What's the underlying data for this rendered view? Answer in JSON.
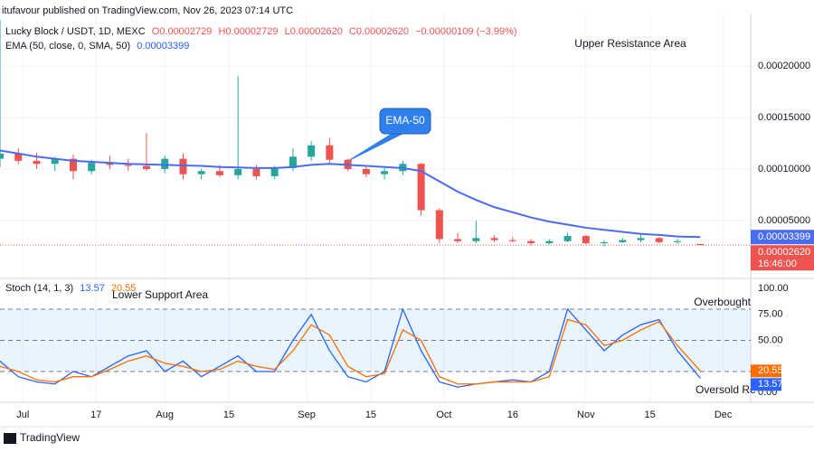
{
  "header": {
    "publisher": "itufavour published on TradingView.com, Nov 26, 2023 07:14 UTC",
    "brand": "TradingView"
  },
  "chart_data": [
    {
      "type": "candlestick",
      "title": "Lucky Block / USDT, 1D, MEXC",
      "ohlc_labels": [
        "O0.00002729",
        "H0.00002729",
        "L0.00002620",
        "C0.00002620",
        "−0.00000109 (−3.99%)"
      ],
      "up_color": "#26a69a",
      "down_color": "#ef5350",
      "x": [
        "2023-06-26",
        "2023-06-30",
        "2023-07-04",
        "2023-07-08",
        "2023-07-12",
        "2023-07-16",
        "2023-07-20",
        "2023-07-24",
        "2023-07-28",
        "2023-08-01",
        "2023-08-05",
        "2023-08-09",
        "2023-08-13",
        "2023-08-17",
        "2023-08-21",
        "2023-08-25",
        "2023-08-29",
        "2023-09-02",
        "2023-09-06",
        "2023-09-10",
        "2023-09-14",
        "2023-09-18",
        "2023-09-22",
        "2023-09-26",
        "2023-09-30",
        "2023-10-04",
        "2023-10-08",
        "2023-10-12",
        "2023-10-16",
        "2023-10-20",
        "2023-10-24",
        "2023-10-28",
        "2023-11-01",
        "2023-11-05",
        "2023-11-09",
        "2023-11-13",
        "2023-11-17",
        "2023-11-21",
        "2023-11-26"
      ],
      "open": [
        0.00011,
        0.000115,
        0.000108,
        0.000105,
        0.00011,
        9.8e-05,
        0.000106,
        0.000104,
        0.000103,
        0.0001,
        0.00011,
        9.5e-05,
        9.8e-05,
        9.4e-05,
        0.0001,
        9.3e-05,
        0.000101,
        0.000112,
        0.000123,
        0.000109,
        0.0001,
        9.5e-05,
        9.8e-05,
        0.000105,
        6e-05,
        3.2e-05,
        3e-05,
        3.3e-05,
        3.1e-05,
        3e-05,
        2.8e-05,
        3e-05,
        3.5e-05,
        2.8e-05,
        2.9e-05,
        3.1e-05,
        3.3e-05,
        2.9e-05,
        2.729e-05
      ],
      "high": [
        0.000245,
        0.00012,
        0.000116,
        0.000112,
        0.000114,
        0.000109,
        0.000113,
        0.00011,
        0.000135,
        0.000113,
        0.000115,
        0.0001,
        0.000104,
        0.00019,
        0.000104,
        0.000103,
        0.00012,
        0.000127,
        0.00013,
        0.00011,
        0.000103,
        0.000101,
        0.000108,
        0.000106,
        6.2e-05,
        3.8e-05,
        5e-05,
        3.6e-05,
        3.4e-05,
        3.2e-05,
        3.2e-05,
        3.8e-05,
        3.6e-05,
        3.1e-05,
        3.3e-05,
        3.8e-05,
        3.4e-05,
        3.2e-05,
        2.729e-05
      ],
      "low": [
        0.000102,
        0.000105,
        0.0001,
        9.8e-05,
        9e-05,
        9.5e-05,
        0.0001,
        9.8e-05,
        9.8e-05,
        9.6e-05,
        9e-05,
        9e-05,
        9.2e-05,
        9e-05,
        9e-05,
        9e-05,
        9.8e-05,
        0.000108,
        0.000105,
        9.8e-05,
        9.2e-05,
        9e-05,
        9.4e-05,
        5.5e-05,
        2.8e-05,
        2.8e-05,
        2.8e-05,
        2.9e-05,
        2.9e-05,
        2.6e-05,
        2.7e-05,
        2.9e-05,
        2.7e-05,
        2.5e-05,
        2.8e-05,
        2.9e-05,
        2.8e-05,
        2.7e-05,
        2.62e-05
      ],
      "close": [
        0.000115,
        0.000108,
        0.000105,
        0.00011,
        9.8e-05,
        0.000106,
        0.000104,
        0.000103,
        0.0001,
        0.00011,
        9.5e-05,
        9.8e-05,
        9.4e-05,
        0.0001,
        9.3e-05,
        0.000101,
        0.000112,
        0.000123,
        0.000109,
        0.0001,
        9.5e-05,
        9.8e-05,
        0.000105,
        6e-05,
        3.2e-05,
        3e-05,
        3.3e-05,
        3.1e-05,
        3e-05,
        2.8e-05,
        3e-05,
        3.5e-05,
        2.8e-05,
        2.9e-05,
        3.1e-05,
        3.3e-05,
        2.9e-05,
        3e-05,
        2.62e-05
      ],
      "last_labels": {
        "close": "0.00002620",
        "countdown": "16:46:00"
      },
      "series": [
        {
          "name": "EMA (50, close, 0, SMA, 50)",
          "color": "#4a6cf0",
          "values": [
            0.000118,
            0.000115,
            0.000112,
            0.00011,
            0.000108,
            0.000107,
            0.000106,
            0.000105,
            0.0001045,
            0.000104,
            0.0001035,
            0.000103,
            0.000102,
            0.0001015,
            0.000101,
            0.000101,
            0.000102,
            0.000104,
            0.000105,
            0.000104,
            0.000103,
            0.000102,
            0.000101,
            9.8e-05,
            8.8e-05,
            7.8e-05,
            7e-05,
            6.3e-05,
            5.8e-05,
            5.3e-05,
            4.9e-05,
            4.6e-05,
            4.3e-05,
            4.1e-05,
            3.9e-05,
            3.7e-05,
            3.6e-05,
            3.45e-05,
            3.399e-05
          ]
        }
      ],
      "ylim": [
        -1.8e-06,
        0.0002509
      ],
      "yticks": [
        {
          "value": 0.0002,
          "label": "0.00020000"
        },
        {
          "value": 0.00015,
          "label": "0.00015000"
        },
        {
          "value": 0.0001,
          "label": "0.00010000"
        },
        {
          "value": 5e-05,
          "label": "0.00005000"
        }
      ],
      "xlim": [
        "2023-06-26",
        "2023-12-07"
      ],
      "grid": true,
      "annotations": [
        "Upper Resistance Area",
        "EMA-50"
      ]
    },
    {
      "type": "line",
      "title": "Stoch (14, 1, 3)",
      "x": [
        "2023-06-26",
        "2023-06-30",
        "2023-07-04",
        "2023-07-08",
        "2023-07-12",
        "2023-07-16",
        "2023-07-20",
        "2023-07-24",
        "2023-07-28",
        "2023-08-01",
        "2023-08-05",
        "2023-08-09",
        "2023-08-13",
        "2023-08-17",
        "2023-08-21",
        "2023-08-25",
        "2023-08-29",
        "2023-09-02",
        "2023-09-06",
        "2023-09-10",
        "2023-09-14",
        "2023-09-18",
        "2023-09-22",
        "2023-09-26",
        "2023-09-30",
        "2023-10-04",
        "2023-10-08",
        "2023-10-12",
        "2023-10-16",
        "2023-10-20",
        "2023-10-24",
        "2023-10-28",
        "2023-11-01",
        "2023-11-05",
        "2023-11-09",
        "2023-11-13",
        "2023-11-17",
        "2023-11-21",
        "2023-11-26"
      ],
      "series": [
        {
          "color": "#2962ff",
          "values": [
            30,
            15,
            10,
            8,
            20,
            15,
            25,
            35,
            40,
            20,
            30,
            15,
            25,
            35,
            20,
            20,
            50,
            75,
            40,
            15,
            10,
            20,
            80,
            40,
            10,
            5,
            8,
            10,
            12,
            10,
            20,
            80,
            60,
            40,
            55,
            65,
            70,
            40,
            13.57
          ]
        },
        {
          "color": "#ff6d00",
          "values": [
            25,
            20,
            12,
            10,
            15,
            15,
            22,
            30,
            35,
            28,
            25,
            20,
            22,
            30,
            25,
            22,
            40,
            65,
            55,
            25,
            15,
            18,
            60,
            50,
            15,
            8,
            8,
            10,
            10,
            10,
            15,
            70,
            65,
            45,
            50,
            60,
            68,
            45,
            20.55
          ]
        }
      ],
      "ylim": [
        -9.6,
        107.8
      ],
      "yticks": [
        {
          "value": 100,
          "label": "100.00"
        },
        {
          "value": 75,
          "label": "75.00"
        },
        {
          "value": 50,
          "label": "50.00"
        },
        {
          "value": 0,
          "label": "0.00"
        }
      ],
      "band": [
        20,
        80
      ],
      "hlines": [
        80,
        50,
        20
      ],
      "xlim": [
        "2023-06-26",
        "2023-12-07"
      ],
      "xticks": [
        {
          "value": "2023-07-01",
          "label": "Jul"
        },
        {
          "value": "2023-07-17",
          "label": "17"
        },
        {
          "value": "2023-08-01",
          "label": "Aug"
        },
        {
          "value": "2023-08-15",
          "label": "15"
        },
        {
          "value": "2023-09-01",
          "label": "Sep"
        },
        {
          "value": "2023-09-15",
          "label": "15"
        },
        {
          "value": "2023-10-01",
          "label": "Oct"
        },
        {
          "value": "2023-10-16",
          "label": "16"
        },
        {
          "value": "2023-11-01",
          "label": "Nov"
        },
        {
          "value": "2023-11-15",
          "label": "15"
        },
        {
          "value": "2023-12-01",
          "label": "Dec"
        }
      ],
      "annotations": [
        "Lower Support Area",
        "Overbought",
        "Oversold Re"
      ]
    }
  ]
}
